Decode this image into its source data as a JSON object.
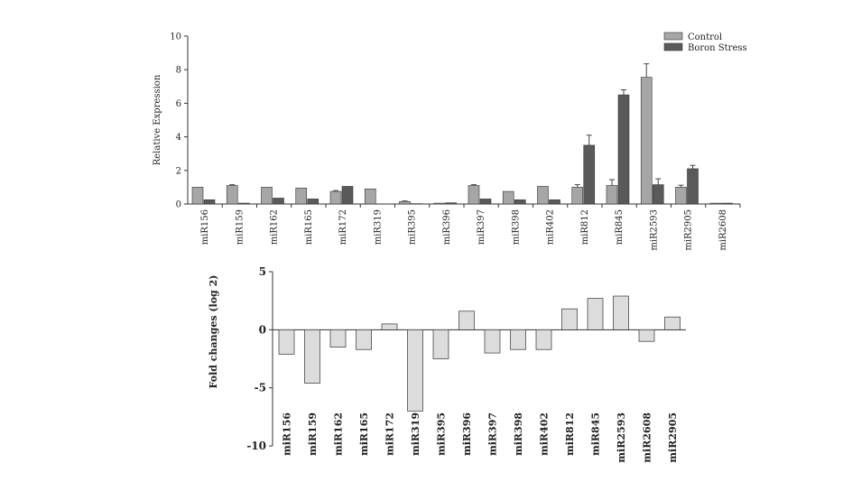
{
  "chart_data": [
    {
      "type": "bar",
      "ylabel": "Relative Expression",
      "ylim": [
        0,
        10
      ],
      "yticks": [
        "0",
        "2",
        "4",
        "6",
        "8",
        "10"
      ],
      "categories": [
        "miR156",
        "miR159",
        "miR162",
        "miR165",
        "miR172",
        "miR319",
        "miR395",
        "miR396",
        "miR397",
        "miR398",
        "miR402",
        "miR812",
        "miR845",
        "miR2593",
        "miR2905",
        "miR2608"
      ],
      "series": [
        {
          "name": "Control",
          "color": "#a6a6a6",
          "values": [
            1.0,
            1.1,
            1.0,
            0.95,
            0.75,
            0.9,
            0.15,
            0.05,
            1.1,
            0.75,
            1.05,
            1.0,
            1.1,
            7.55,
            1.0,
            0.05
          ],
          "errors": [
            0,
            0.05,
            0,
            0,
            0.05,
            0,
            0.03,
            0,
            0.05,
            0,
            0,
            0.15,
            0.35,
            0.8,
            0.12,
            0
          ]
        },
        {
          "name": "Boron Stress",
          "color": "#5a5a5a",
          "values": [
            0.25,
            0.05,
            0.35,
            0.3,
            1.05,
            0.0,
            0.02,
            0.07,
            0.3,
            0.25,
            0.25,
            3.5,
            6.5,
            1.15,
            2.1,
            0.05
          ],
          "errors": [
            0,
            0,
            0,
            0,
            0,
            0,
            0,
            0,
            0,
            0,
            0,
            0.6,
            0.3,
            0.35,
            0.2,
            0
          ]
        }
      ],
      "legend": "top-right"
    },
    {
      "type": "bar",
      "ylabel": "Fold changes (log 2)",
      "ylim": [
        -10,
        5
      ],
      "yticks": [
        "5",
        "0",
        "-5",
        "-10"
      ],
      "categories": [
        "miR156",
        "miR159",
        "miR162",
        "miR165",
        "miR172",
        "miR319",
        "miR395",
        "miR396",
        "miR397",
        "miR398",
        "miR402",
        "miR812",
        "miR845",
        "miR2593",
        "miR2608",
        "miR2905"
      ],
      "series": [
        {
          "name": "Fold change",
          "color": "#dcdcdc",
          "values": [
            -2.1,
            -4.6,
            -1.5,
            -1.7,
            0.5,
            -7.0,
            -2.5,
            1.6,
            -2.0,
            -1.7,
            -1.7,
            1.8,
            2.7,
            2.9,
            -1.0,
            1.1
          ]
        }
      ]
    }
  ]
}
